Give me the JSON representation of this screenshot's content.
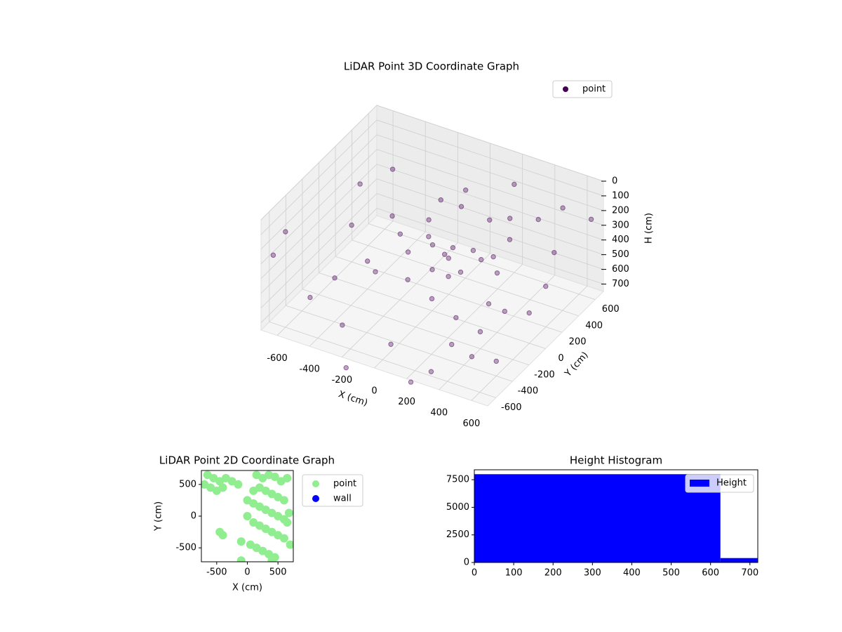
{
  "chart_data": [
    {
      "type": "scatter3d",
      "title": "LiDAR Point 3D Coordinate Graph",
      "xlabel": "X (cm)",
      "ylabel": "Y (cm)",
      "zlabel": "H (cm)",
      "xlim": [
        -700,
        700
      ],
      "ylim": [
        -700,
        700
      ],
      "zlim": [
        750,
        0
      ],
      "xticks": [
        -600,
        -400,
        -200,
        0,
        200,
        400,
        600
      ],
      "yticks": [
        -600,
        -400,
        -200,
        0,
        200,
        400,
        600
      ],
      "zticks": [
        0,
        100,
        200,
        300,
        400,
        500,
        600,
        700
      ],
      "grid": true,
      "legend": "upper right",
      "series": [
        {
          "name": "point",
          "color": "#440154",
          "x": [
            -100,
            0,
            100,
            200,
            -200,
            50,
            150,
            250,
            -50,
            300,
            350,
            400,
            450,
            500,
            300,
            100,
            -100,
            -300,
            -500,
            -400,
            -300,
            -200,
            -400,
            600,
            650,
            650,
            -650,
            -600,
            200,
            500,
            -500,
            0,
            300,
            -300,
            600,
            -600,
            400,
            -100,
            100,
            0,
            -100,
            550,
            -550,
            200,
            -200,
            650,
            -650,
            350,
            0,
            150,
            -150,
            250
          ],
          "y": [
            200,
            250,
            300,
            200,
            100,
            100,
            400,
            450,
            450,
            350,
            100,
            -100,
            -300,
            -500,
            -300,
            -200,
            -100,
            -100,
            -200,
            0,
            200,
            350,
            300,
            300,
            100,
            -100,
            -650,
            -600,
            600,
            600,
            500,
            -500,
            -600,
            -500,
            -400,
            200,
            500,
            600,
            0,
            0,
            300,
            -200,
            -400,
            -650,
            -650,
            650,
            400,
            -450,
            150,
            50,
            250,
            250
          ],
          "z": [
            450,
            460,
            470,
            440,
            480,
            430,
            300,
            280,
            310,
            350,
            420,
            500,
            560,
            600,
            520,
            520,
            520,
            540,
            600,
            560,
            450,
            400,
            420,
            300,
            400,
            470,
            250,
            100,
            150,
            200,
            250,
            700,
            720,
            680,
            650,
            500,
            260,
            300,
            480,
            470,
            200,
            440,
            640,
            800,
            850,
            250,
            350,
            600,
            450,
            460,
            440,
            430
          ]
        }
      ]
    },
    {
      "type": "scatter",
      "title": "LiDAR Point 2D Coordinate Graph",
      "xlabel": "X (cm)",
      "ylabel": "Y (cm)",
      "xlim": [
        -750,
        750
      ],
      "ylim": [
        -720,
        720
      ],
      "xticks": [
        -500,
        0,
        500
      ],
      "yticks": [
        -500,
        0,
        500
      ],
      "legend": "outside right",
      "series": [
        {
          "name": "point",
          "color": "#90ee90",
          "x": [
            -650,
            -550,
            -450,
            -350,
            -250,
            -150,
            -700,
            -600,
            -500,
            -400,
            150,
            250,
            350,
            450,
            550,
            650,
            100,
            200,
            300,
            400,
            500,
            600,
            0,
            100,
            200,
            300,
            400,
            500,
            600,
            0,
            100,
            200,
            300,
            400,
            500,
            -100,
            50,
            150,
            250,
            350,
            450,
            600,
            -450,
            -400,
            700,
            -100,
            400,
            650,
            680
          ],
          "y": [
            650,
            600,
            550,
            600,
            550,
            500,
            500,
            450,
            400,
            450,
            650,
            600,
            650,
            620,
            550,
            600,
            400,
            450,
            400,
            350,
            300,
            250,
            250,
            200,
            150,
            100,
            50,
            0,
            -50,
            0,
            -100,
            -150,
            -200,
            -250,
            -300,
            -400,
            -450,
            -500,
            -550,
            -600,
            -650,
            -350,
            -250,
            -300,
            -450,
            -700,
            -700,
            -100,
            50
          ]
        },
        {
          "name": "wall",
          "color": "#0000ff",
          "x": [],
          "y": []
        }
      ]
    },
    {
      "type": "histogram",
      "title": "Height Histogram",
      "bins": [
        0,
        625,
        720
      ],
      "counts": [
        8000,
        400
      ],
      "xlim": [
        0,
        720
      ],
      "ylim": [
        0,
        8400
      ],
      "xticks": [
        0,
        100,
        200,
        300,
        400,
        500,
        600,
        700
      ],
      "yticks": [
        0,
        2500,
        5000,
        7500
      ],
      "legend": "upper right",
      "series_name": "Height",
      "color": "#0000ff"
    }
  ]
}
